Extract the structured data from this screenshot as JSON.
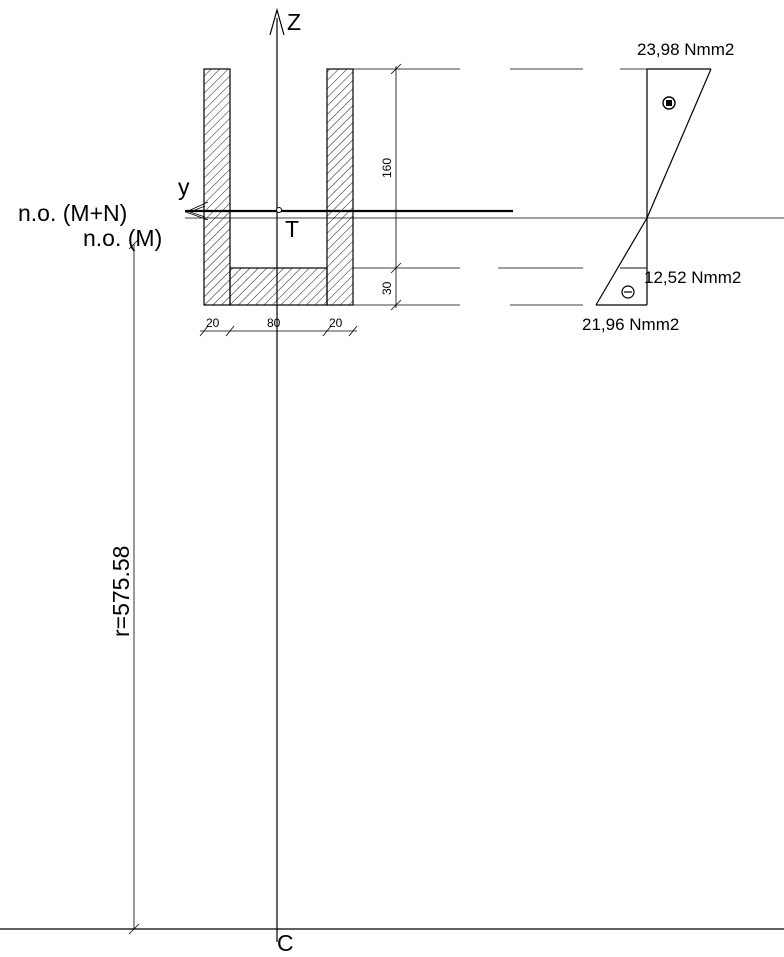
{
  "axes": {
    "z_label": "Z",
    "y_label": "y",
    "centroid_label": "T",
    "center_label": "C"
  },
  "neutral_axes": {
    "m_plus_n": "n.o. (M+N)",
    "m_only": "n.o. (M)"
  },
  "radius_label": "r=575.58",
  "dimensions": {
    "height_web": "160",
    "height_flange": "30",
    "width_left": "20",
    "width_middle": "80",
    "width_right": "20"
  },
  "stress": {
    "top_value": "23,98 Nmm2",
    "mid_value": "12,52 Nmm2",
    "bottom_value": "21,96 Nmm2",
    "tension_symbol": "⊙",
    "compression_symbol": "⊖"
  }
}
